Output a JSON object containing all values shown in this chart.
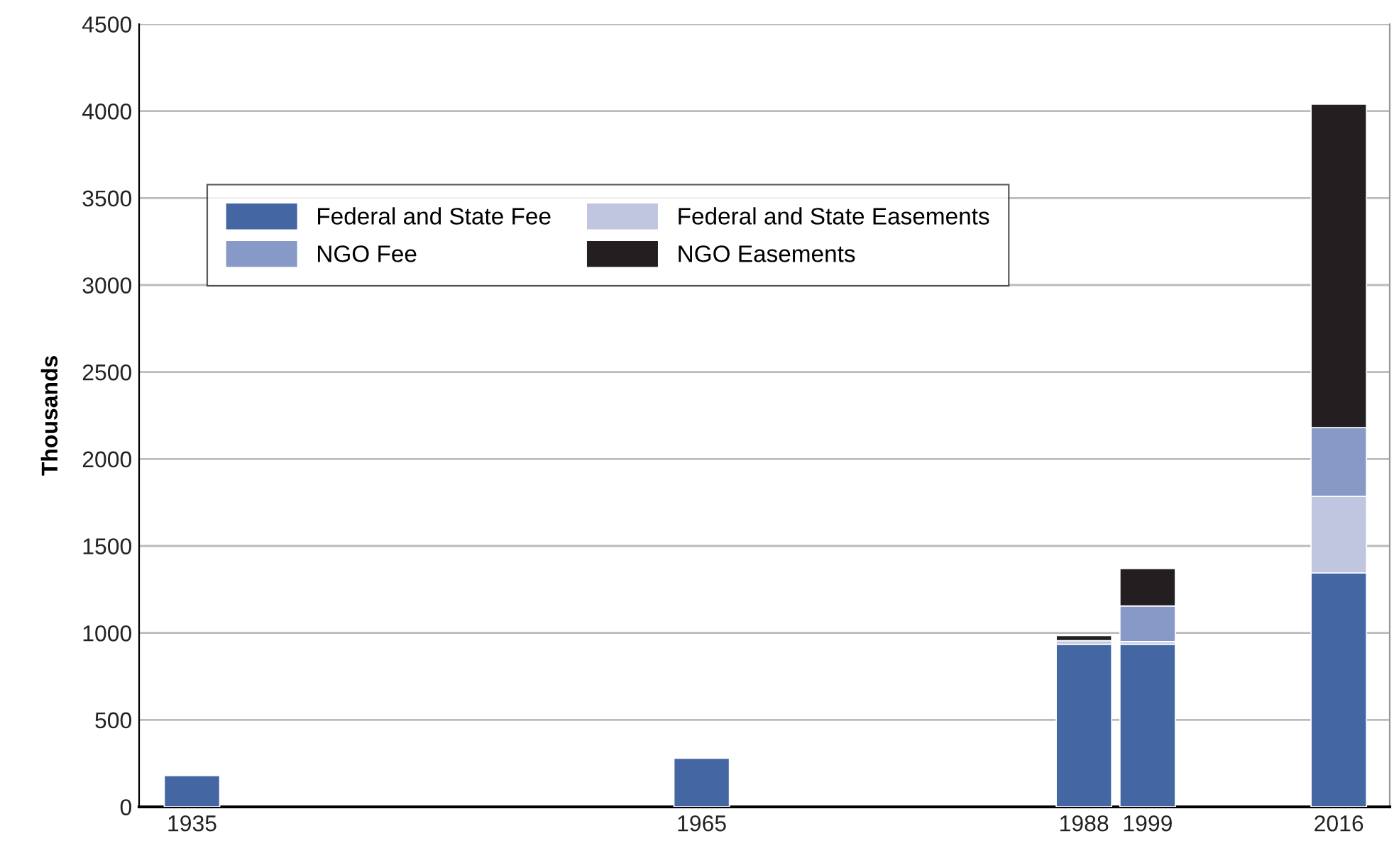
{
  "chart_data": {
    "type": "bar",
    "stacked": true,
    "ylabel": "Thousands",
    "categories": [
      "1935",
      null,
      null,
      null,
      null,
      null,
      null,
      null,
      "1965",
      null,
      null,
      null,
      null,
      null,
      "1988",
      "1999",
      null,
      null,
      "2016"
    ],
    "series": [
      {
        "name": "Federal and State Fee",
        "color": "#4466a3",
        "values": [
          180,
          null,
          null,
          null,
          null,
          null,
          null,
          null,
          280,
          null,
          null,
          null,
          null,
          null,
          935,
          935,
          null,
          null,
          1345
        ]
      },
      {
        "name": "Federal and State Easements",
        "color": "#c0c5e0",
        "values": [
          null,
          null,
          null,
          null,
          null,
          null,
          null,
          null,
          null,
          null,
          null,
          null,
          null,
          null,
          20,
          15,
          null,
          null,
          440
        ]
      },
      {
        "name": "NGO Fee",
        "color": "#8799c6",
        "values": [
          null,
          null,
          null,
          null,
          null,
          null,
          null,
          null,
          null,
          null,
          null,
          null,
          null,
          null,
          null,
          205,
          null,
          null,
          395
        ]
      },
      {
        "name": "NGO Easements",
        "color": "#231f20",
        "values": [
          null,
          null,
          null,
          null,
          null,
          null,
          null,
          null,
          null,
          null,
          null,
          null,
          null,
          null,
          30,
          215,
          null,
          null,
          1860
        ]
      }
    ],
    "ylim": [
      0,
      4500
    ],
    "yticks": [
      0,
      500,
      1000,
      1500,
      2000,
      2500,
      3000,
      3500,
      4000,
      4500
    ],
    "grid": "y",
    "legend": "top left"
  }
}
